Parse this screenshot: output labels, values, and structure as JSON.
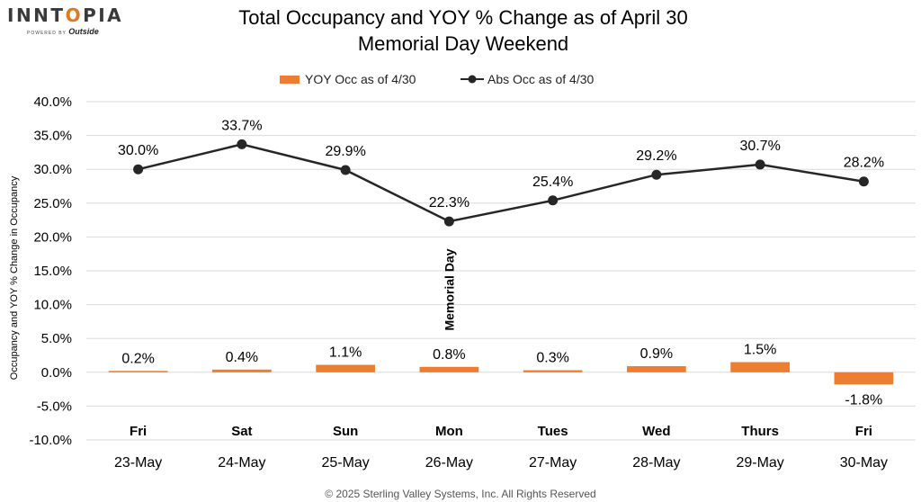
{
  "logo": {
    "brand": "INNTOPIA",
    "powered_by": "POWERED BY",
    "partner": "Outside"
  },
  "footer": "© 2025 Sterling Valley Systems, Inc. All Rights Reserved",
  "colors": {
    "bar": "#ed7d31",
    "line": "#262626",
    "grid": "#d9d9d9"
  },
  "chart_data": {
    "type": "bar+line",
    "title_line1": "Total Occupancy and YOY % Change as of April 30",
    "title_line2": "Memorial Day Weekend",
    "ylabel": "Occupancy and YOY % Change in Occupancy",
    "xlabel": "",
    "ylim": [
      -10,
      40
    ],
    "ytick_step": 5,
    "yticks": [
      "-10.0%",
      "-5.0%",
      "0.0%",
      "5.0%",
      "10.0%",
      "15.0%",
      "20.0%",
      "25.0%",
      "30.0%",
      "35.0%",
      "40.0%"
    ],
    "grid": true,
    "legend_position": "top-center",
    "days": [
      "Fri",
      "Sat",
      "Sun",
      "Mon",
      "Tues",
      "Wed",
      "Thurs",
      "Fri"
    ],
    "categories": [
      "23-May",
      "24-May",
      "25-May",
      "26-May",
      "27-May",
      "28-May",
      "29-May",
      "30-May"
    ],
    "series": [
      {
        "name": "YOY Occ as of 4/30",
        "kind": "bar",
        "values": [
          0.2,
          0.4,
          1.1,
          0.8,
          0.3,
          0.9,
          1.5,
          -1.8
        ],
        "labels": [
          "0.2%",
          "0.4%",
          "1.1%",
          "0.8%",
          "0.3%",
          "0.9%",
          "1.5%",
          "-1.8%"
        ]
      },
      {
        "name": "Abs Occ as of 4/30",
        "kind": "line",
        "values": [
          30.0,
          33.7,
          29.9,
          22.3,
          25.4,
          29.2,
          30.7,
          28.2
        ],
        "labels": [
          "30.0%",
          "33.7%",
          "29.9%",
          "22.3%",
          "25.4%",
          "29.2%",
          "30.7%",
          "28.2%"
        ]
      }
    ],
    "annotation": {
      "text": "Memorial Day",
      "category_index": 3
    }
  }
}
